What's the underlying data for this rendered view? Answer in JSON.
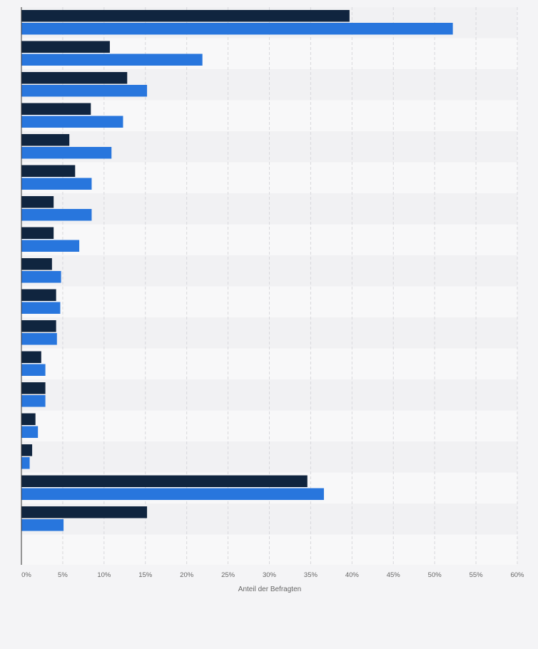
{
  "chart_data": {
    "type": "bar",
    "orientation": "horizontal",
    "categories": [
      "",
      "",
      "",
      "",
      "",
      "",
      "",
      "",
      "",
      "",
      "",
      "",
      "",
      "",
      "",
      "",
      ""
    ],
    "series": [
      {
        "values": [
          39.7,
          10.7,
          12.8,
          8.4,
          5.8,
          6.5,
          3.9,
          3.9,
          3.7,
          4.2,
          4.2,
          2.4,
          2.9,
          1.7,
          1.3,
          34.6,
          15.2
        ]
      },
      {
        "values": [
          52.2,
          21.9,
          15.2,
          12.3,
          10.9,
          8.5,
          8.5,
          7.0,
          4.8,
          4.7,
          4.3,
          2.9,
          2.9,
          2.0,
          1.0,
          36.6,
          5.1
        ]
      }
    ],
    "colors": [
      "#10253f",
      "#2876dd"
    ],
    "xlim": [
      0,
      60
    ],
    "xticks": [
      "0%",
      "5%",
      "10%",
      "15%",
      "20%",
      "25%",
      "30%",
      "35%",
      "40%",
      "45%",
      "50%",
      "55%",
      "60%"
    ],
    "xlabel": "Anteil der Befragten",
    "grid": true,
    "legend": "none"
  }
}
